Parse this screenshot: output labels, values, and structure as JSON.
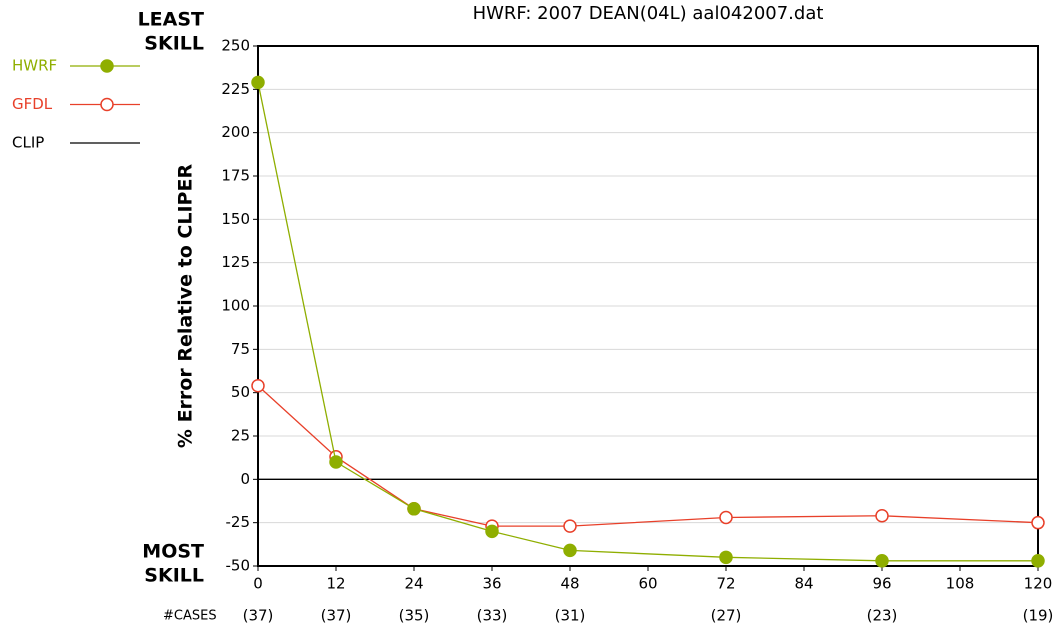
{
  "chart_data": {
    "type": "line",
    "title": "HWRF: 2007 DEAN(04L) aal042007.dat",
    "y_label": "% Error Relative to CLIPER",
    "top_annotation": [
      "LEAST",
      "SKILL"
    ],
    "bottom_annotation": [
      "MOST",
      "SKILL"
    ],
    "x": [
      0,
      12,
      24,
      36,
      48,
      72,
      96,
      120
    ],
    "cases_label": "#CASES",
    "cases": [
      "(37)",
      "(37)",
      "(35)",
      "(33)",
      "(31)",
      "(27)",
      "(23)",
      "(19)"
    ],
    "series": [
      {
        "name": "HWRF",
        "color": "#8fae00",
        "marker": "filled",
        "values": [
          229,
          10,
          -17,
          -30,
          -41,
          -45,
          -47,
          -47
        ]
      },
      {
        "name": "GFDL",
        "color": "#e8402a",
        "marker": "open",
        "values": [
          54,
          13,
          -17,
          -27,
          -27,
          -22,
          -21,
          -25
        ]
      },
      {
        "name": "CLIP",
        "color": "#000000",
        "marker": "none",
        "values": [
          0,
          0,
          0,
          0,
          0,
          0,
          0,
          0
        ]
      }
    ],
    "xlim": [
      0,
      120
    ],
    "xticks": [
      0,
      12,
      24,
      36,
      48,
      60,
      72,
      84,
      96,
      108,
      120
    ],
    "ylim": [
      -50,
      250
    ],
    "yticks": [
      -50,
      -25,
      0,
      25,
      50,
      75,
      100,
      125,
      150,
      175,
      200,
      225,
      250
    ],
    "grid": true
  }
}
